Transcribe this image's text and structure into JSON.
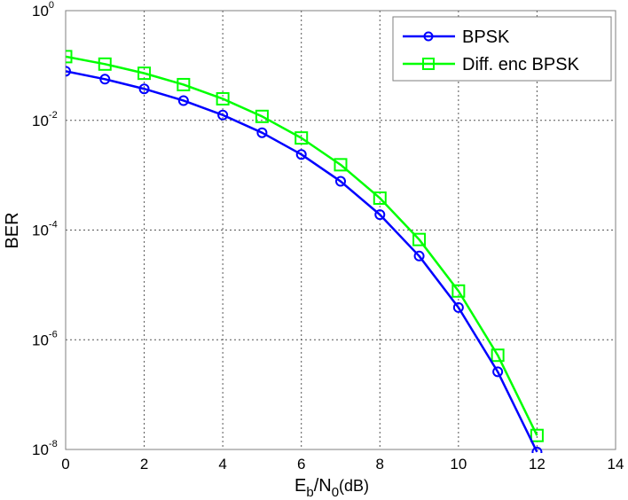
{
  "chart_data": {
    "type": "line",
    "title": "",
    "xlabel": "E_b/N_0(dB)",
    "ylabel": "BER",
    "xlim": [
      0,
      14
    ],
    "ylim": [
      1e-08,
      1
    ],
    "yscale": "log",
    "grid": true,
    "legend_position": "upper right",
    "x_ticks": [
      0,
      2,
      4,
      6,
      8,
      10,
      12,
      14
    ],
    "y_ticks": [
      "10^0",
      "10^-2",
      "10^-4",
      "10^-6",
      "10^-8"
    ],
    "x": [
      0,
      1,
      2,
      3,
      4,
      5,
      6,
      7,
      8,
      9,
      10,
      11,
      12
    ],
    "series": [
      {
        "name": "BPSK",
        "color": "#0000ff",
        "marker": "circle",
        "values": [
          0.0786,
          0.0563,
          0.0375,
          0.0229,
          0.0125,
          0.00595,
          0.00239,
          0.000773,
          0.000191,
          3.36e-05,
          3.87e-06,
          2.61e-07,
          9e-09
        ]
      },
      {
        "name": "Diff. enc BPSK",
        "color": "#00ff00",
        "marker": "square",
        "values": [
          0.145,
          0.106,
          0.0722,
          0.0448,
          0.0247,
          0.0118,
          0.00477,
          0.00155,
          0.000382,
          6.72e-05,
          7.74e-06,
          5.22e-07,
          1.8e-08
        ]
      }
    ]
  },
  "axes": {
    "x_tick_labels": [
      "0",
      "2",
      "4",
      "6",
      "8",
      "10",
      "12",
      "14"
    ],
    "y_tick_labels": [
      {
        "base": "10",
        "exp": "0"
      },
      {
        "base": "10",
        "exp": "-2"
      },
      {
        "base": "10",
        "exp": "-4"
      },
      {
        "base": "10",
        "exp": "-6"
      },
      {
        "base": "10",
        "exp": "-8"
      }
    ],
    "xlabel": {
      "main1": "E",
      "sub1": "b",
      "main2": "/N",
      "sub2": "0",
      "main3": "(dB)"
    },
    "ylabel": "BER"
  },
  "legend": {
    "items": [
      {
        "label": "BPSK",
        "color": "#0000ff",
        "marker": "circle"
      },
      {
        "label": "Diff. enc BPSK",
        "color": "#00ff00",
        "marker": "square"
      }
    ]
  }
}
